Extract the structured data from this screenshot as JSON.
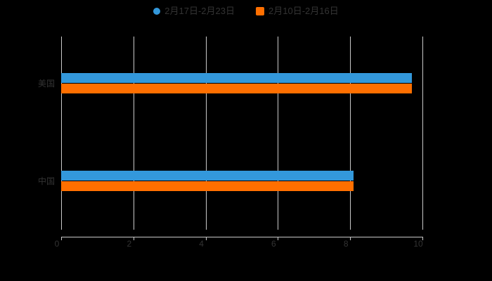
{
  "chart_data": {
    "type": "bar",
    "orientation": "horizontal",
    "title": "",
    "categories": [
      "美国",
      "中国"
    ],
    "series": [
      {
        "name": "2月17日-2月23日",
        "color": "#3398DB",
        "marker": "circle",
        "values": [
          9.7,
          8.1
        ]
      },
      {
        "name": "2月10日-2月16日",
        "color": "#FF6F00",
        "marker": "square",
        "values": [
          9.7,
          8.1
        ]
      }
    ],
    "xlim": [
      0,
      10
    ],
    "x_ticks": [
      0,
      2,
      4,
      6,
      8,
      10
    ],
    "x_tick_labels": [
      "0",
      "2",
      "4",
      "6",
      "8",
      "10"
    ],
    "grid": true,
    "legend_position": "top",
    "colors": {
      "background": "#000000",
      "grid_line": "#C9C9C9",
      "axis_line": "#C9C9C9",
      "tick_label_text": "#333333",
      "category_label_text": "#333333",
      "legend_text": "#333333"
    }
  }
}
